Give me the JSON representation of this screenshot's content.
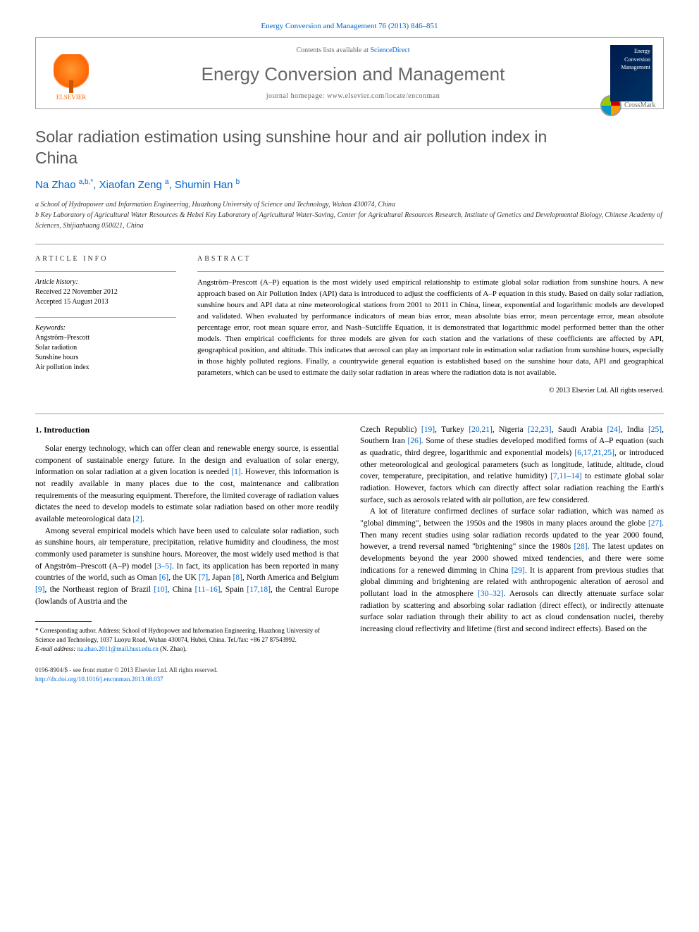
{
  "top_bar": "Energy Conversion and Management 76 (2013) 846–851",
  "header": {
    "publisher": "ELSEVIER",
    "contents_prefix": "Contents lists available at ",
    "contents_link": "ScienceDirect",
    "journal_title": "Energy Conversion and Management",
    "homepage_label": "journal homepage: www.elsevier.com/locate/enconman",
    "cover_text": "Energy Conversion Management"
  },
  "article": {
    "title": "Solar radiation estimation using sunshine hour and air pollution index in China",
    "crossmark": "CrossMark",
    "authors_html": "Na Zhao <sup>a,b,*</sup>, Xiaofan Zeng <sup>a</sup>, Shumin Han <sup>b</sup>",
    "affiliations": {
      "a": "a School of Hydropower and Information Engineering, Huazhong University of Science and Technology, Wuhan 430074, China",
      "b": "b Key Laboratory of Agricultural Water Resources & Hebei Key Laboratory of Agricultural Water-Saving, Center for Agricultural Resources Research, Institute of Genetics and Developmental Biology, Chinese Academy of Sciences, Shijiazhuang 050021, China"
    }
  },
  "info": {
    "heading": "ARTICLE INFO",
    "history_label": "Article history:",
    "received": "Received 22 November 2012",
    "accepted": "Accepted 15 August 2013",
    "keywords_label": "Keywords:",
    "keywords": [
      "Angström–Prescott",
      "Solar radiation",
      "Sunshine hours",
      "Air pollution index"
    ]
  },
  "abstract": {
    "heading": "ABSTRACT",
    "text": "Angström–Prescott (A–P) equation is the most widely used empirical relationship to estimate global solar radiation from sunshine hours. A new approach based on Air Pollution Index (API) data is introduced to adjust the coefficients of A–P equation in this study. Based on daily solar radiation, sunshine hours and API data at nine meteorological stations from 2001 to 2011 in China, linear, exponential and logarithmic models are developed and validated. When evaluated by performance indicators of mean bias error, mean absolute bias error, mean percentage error, mean absolute percentage error, root mean square error, and Nash–Sutcliffe Equation, it is demonstrated that logarithmic model performed better than the other models. Then empirical coefficients for three models are given for each station and the variations of these coefficients are affected by API, geographical position, and altitude. This indicates that aerosol can play an important role in estimation solar radiation from sunshine hours, especially in those highly polluted regions. Finally, a countrywide general equation is established based on the sunshine hour data, API and geographical parameters, which can be used to estimate the daily solar radiation in areas where the radiation data is not available.",
    "copyright": "© 2013 Elsevier Ltd. All rights reserved."
  },
  "body": {
    "section_heading": "1. Introduction",
    "left_paras": [
      "Solar energy technology, which can offer clean and renewable energy source, is essential component of sustainable energy future. In the design and evaluation of solar energy, information on solar radiation at a given location is needed [1]. However, this information is not readily available in many places due to the cost, maintenance and calibration requirements of the measuring equipment. Therefore, the limited coverage of radiation values dictates the need to develop models to estimate solar radiation based on other more readily available meteorological data [2].",
      "Among several empirical models which have been used to calculate solar radiation, such as sunshine hours, air temperature, precipitation, relative humidity and cloudiness, the most commonly used parameter is sunshine hours. Moreover, the most widely used method is that of Angström–Prescott (A–P) model [3–5]. In fact, its application has been reported in many countries of the world, such as Oman [6], the UK [7], Japan [8], North America and Belgium [9], the Northeast region of Brazil [10], China [11–16], Spain [17,18], the Central Europe (lowlands of Austria and the"
    ],
    "right_paras": [
      "Czech Republic) [19], Turkey [20,21], Nigeria [22,23], Saudi Arabia [24], India [25], Southern Iran [26]. Some of these studies developed modified forms of A–P equation (such as quadratic, third degree, logarithmic and exponential models) [6,17,21,25], or introduced other meteorological and geological parameters (such as longitude, latitude, altitude, cloud cover, temperature, precipitation, and relative humidity) [7,11–14] to estimate global solar radiation. However, factors which can directly affect solar radiation reaching the Earth's surface, such as aerosols related with air pollution, are few considered.",
      "A lot of literature confirmed declines of surface solar radiation, which was named as \"global dimming\", between the 1950s and the 1980s in many places around the globe [27]. Then many recent studies using solar radiation records updated to the year 2000 found, however, a trend reversal named \"brightening\" since the 1980s [28]. The latest updates on developments beyond the year 2000 showed mixed tendencies, and there were some indications for a renewed dimming in China [29]. It is apparent from previous studies that global dimming and brightening are related with anthropogenic alteration of aerosol and pollutant load in the atmosphere [30–32]. Aerosols can directly attenuate surface solar radiation by scattering and absorbing solar radiation (direct effect), or indirectly attenuate surface solar radiation through their ability to act as cloud condensation nuclei, thereby increasing cloud reflectivity and lifetime (first and second indirect effects). Based on the"
    ]
  },
  "footnote": {
    "corresponding": "* Corresponding author. Address: School of Hydropower and Information Engineering, Huazhong University of Science and Technology, 1037 Luoyu Road, Wuhan 430074, Hubei, China. Tel./fax: +86 27 87543992.",
    "email_label": "E-mail address:",
    "email": "na.zhao.2011@mail.hust.edu.cn",
    "email_suffix": "(N. Zhao)."
  },
  "footer": {
    "line1": "0196-8904/$ - see front matter © 2013 Elsevier Ltd. All rights reserved.",
    "doi": "http://dx.doi.org/10.1016/j.enconman.2013.08.037"
  },
  "colors": {
    "link": "#0066cc",
    "text": "#000000",
    "muted": "#666666",
    "elsevier_orange": "#ff6600",
    "rule": "#999999"
  }
}
